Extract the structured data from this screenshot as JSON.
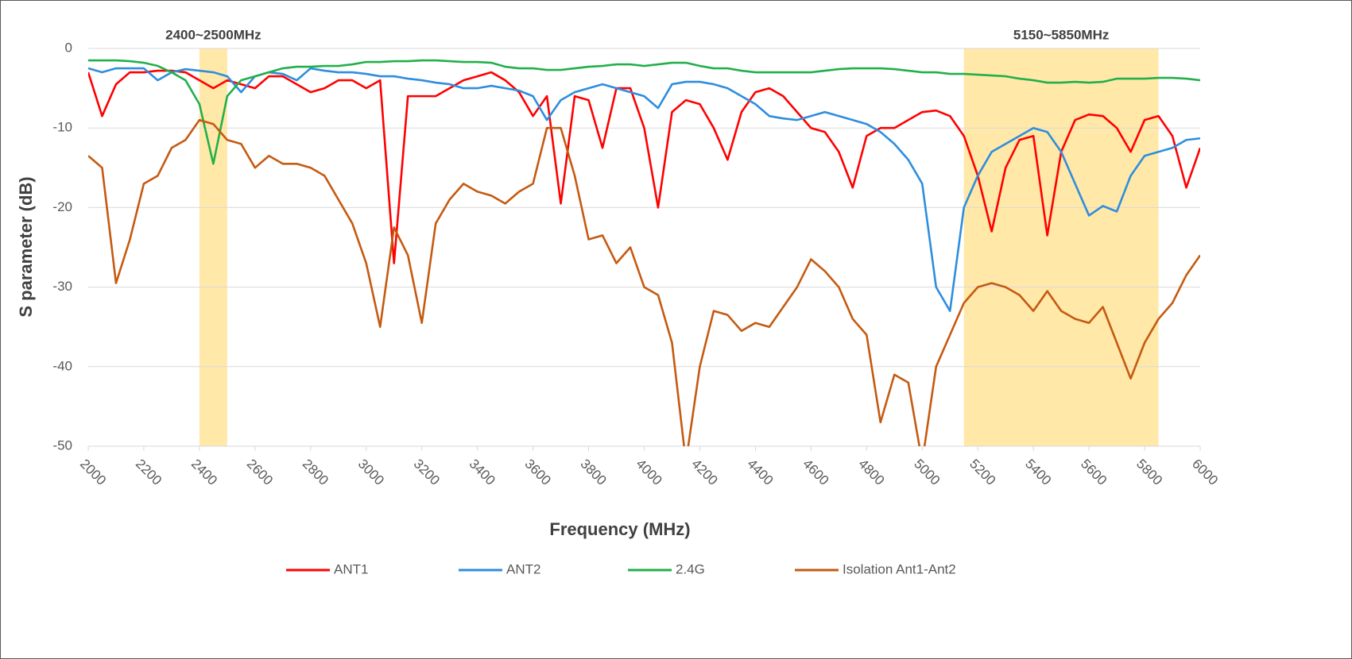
{
  "chart_data": {
    "type": "line",
    "x_label": "Frequency (MHz)",
    "y_label": "S parameter (dB)",
    "xlim": [
      2000,
      6000
    ],
    "ylim": [
      -50,
      0
    ],
    "xticks": [
      2000,
      2200,
      2400,
      2600,
      2800,
      3000,
      3200,
      3400,
      3600,
      3800,
      4000,
      4200,
      4400,
      4600,
      4800,
      5000,
      5200,
      5400,
      5600,
      5800,
      6000
    ],
    "yticks": [
      -50,
      -40,
      -30,
      -20,
      -10,
      0
    ],
    "grid": true,
    "legend": "bottom",
    "bands": [
      {
        "label": "2400~2500MHz",
        "range": [
          2400,
          2500
        ],
        "color": "#ffe8a8"
      },
      {
        "label": "5150~5850MHz",
        "range": [
          5150,
          5850
        ],
        "color": "#ffe8a8"
      }
    ],
    "x": [
      2000,
      2050,
      2100,
      2150,
      2200,
      2250,
      2300,
      2350,
      2400,
      2450,
      2500,
      2550,
      2600,
      2650,
      2700,
      2750,
      2800,
      2850,
      2900,
      2950,
      3000,
      3050,
      3100,
      3150,
      3200,
      3250,
      3300,
      3350,
      3400,
      3450,
      3500,
      3550,
      3600,
      3650,
      3700,
      3750,
      3800,
      3850,
      3900,
      3950,
      4000,
      4050,
      4100,
      4150,
      4200,
      4250,
      4300,
      4350,
      4400,
      4450,
      4500,
      4550,
      4600,
      4650,
      4700,
      4750,
      4800,
      4850,
      4900,
      4950,
      5000,
      5050,
      5100,
      5150,
      5200,
      5250,
      5300,
      5350,
      5400,
      5450,
      5500,
      5550,
      5600,
      5650,
      5700,
      5750,
      5800,
      5850,
      5900,
      5950,
      6000
    ],
    "series": [
      {
        "name": "ANT1",
        "color": "#ff0000",
        "values": [
          -3,
          -8.5,
          -4.5,
          -3,
          -3,
          -2.8,
          -2.8,
          -3,
          -4,
          -5,
          -4,
          -4.5,
          -5,
          -3.5,
          -3.5,
          -4.5,
          -5.5,
          -5,
          -4,
          -4,
          -5,
          -4,
          -27,
          -6,
          -6,
          -6,
          -5,
          -4,
          -3.5,
          -3,
          -4,
          -5.5,
          -8.5,
          -6,
          -19.5,
          -6,
          -6.5,
          -12.5,
          -5,
          -5,
          -10,
          -20,
          -8,
          -6.5,
          -7,
          -10,
          -14,
          -8,
          -5.5,
          -5,
          -6,
          -8,
          -10,
          -10.5,
          -13,
          -17.5,
          -11,
          -10,
          -10,
          -9,
          -8,
          -7.8,
          -8.5,
          -11,
          -16,
          -23,
          -15,
          -11.5,
          -11,
          -23.5,
          -13,
          -9,
          -8.3,
          -8.5,
          -10,
          -13,
          -9,
          -8.5,
          -11,
          -17.5,
          -12.5
        ]
      },
      {
        "name": "ANT2",
        "color": "#2e8ede",
        "values": [
          -2.5,
          -3,
          -2.5,
          -2.5,
          -2.5,
          -4,
          -3,
          -2.6,
          -2.8,
          -3,
          -3.5,
          -5.5,
          -3.5,
          -3,
          -3.2,
          -4,
          -2.5,
          -2.8,
          -3,
          -3,
          -3.2,
          -3.5,
          -3.5,
          -3.8,
          -4,
          -4.3,
          -4.5,
          -5,
          -5,
          -4.7,
          -5,
          -5.3,
          -6,
          -9,
          -6.5,
          -5.5,
          -5,
          -4.5,
          -5,
          -5.5,
          -6,
          -7.5,
          -4.5,
          -4.2,
          -4.2,
          -4.5,
          -5,
          -6,
          -7,
          -8.5,
          -8.8,
          -9,
          -8.5,
          -8,
          -8.5,
          -9,
          -9.5,
          -10.5,
          -12,
          -14,
          -17,
          -30,
          -33,
          -20,
          -16,
          -13,
          -12,
          -11,
          -10,
          -10.5,
          -13,
          -17,
          -21,
          -19.8,
          -20.5,
          -16,
          -13.5,
          -13,
          -12.5,
          -11.5,
          -11.3
        ]
      },
      {
        "name": "2.4G",
        "color": "#22b04a",
        "values": [
          -1.5,
          -1.5,
          -1.5,
          -1.6,
          -1.8,
          -2.2,
          -3,
          -4,
          -7,
          -14.5,
          -6,
          -4,
          -3.5,
          -3,
          -2.5,
          -2.3,
          -2.3,
          -2.2,
          -2.2,
          -2,
          -1.7,
          -1.7,
          -1.6,
          -1.6,
          -1.5,
          -1.5,
          -1.6,
          -1.7,
          -1.7,
          -1.8,
          -2.3,
          -2.5,
          -2.5,
          -2.7,
          -2.7,
          -2.5,
          -2.3,
          -2.2,
          -2,
          -2,
          -2.2,
          -2,
          -1.8,
          -1.8,
          -2.2,
          -2.5,
          -2.5,
          -2.8,
          -3,
          -3,
          -3,
          -3,
          -3,
          -2.8,
          -2.6,
          -2.5,
          -2.5,
          -2.5,
          -2.6,
          -2.8,
          -3,
          -3,
          -3.2,
          -3.2,
          -3.3,
          -3.4,
          -3.5,
          -3.8,
          -4,
          -4.3,
          -4.3,
          -4.2,
          -4.3,
          -4.2,
          -3.8,
          -3.8,
          -3.8,
          -3.7,
          -3.7,
          -3.8,
          -4
        ]
      },
      {
        "name": "Isolation Ant1-Ant2",
        "color": "#c55a11",
        "values": [
          -13.5,
          -15,
          -29.5,
          -24,
          -17,
          -16,
          -12.5,
          -11.5,
          -9,
          -9.5,
          -11.5,
          -12,
          -15,
          -13.5,
          -14.5,
          -14.5,
          -15,
          -16,
          -19,
          -22,
          -27,
          -35,
          -22.5,
          -26,
          -34.5,
          -22,
          -19,
          -17,
          -18,
          -18.5,
          -19.5,
          -18,
          -17,
          -10,
          -10,
          -16,
          -24,
          -23.5,
          -27,
          -25,
          -30,
          -31,
          -37,
          -52,
          -40,
          -33,
          -33.5,
          -35.5,
          -34.5,
          -35,
          -32.5,
          -30,
          -26.5,
          -28,
          -30,
          -34,
          -36,
          -47,
          -41,
          -42,
          -52,
          -40,
          -36,
          -32,
          -30,
          -29.5,
          -30,
          -31,
          -33,
          -30.5,
          -33,
          -34,
          -34.5,
          -32.5,
          -37,
          -41.5,
          -37,
          -34,
          -32,
          -28.5,
          -26
        ]
      }
    ]
  }
}
